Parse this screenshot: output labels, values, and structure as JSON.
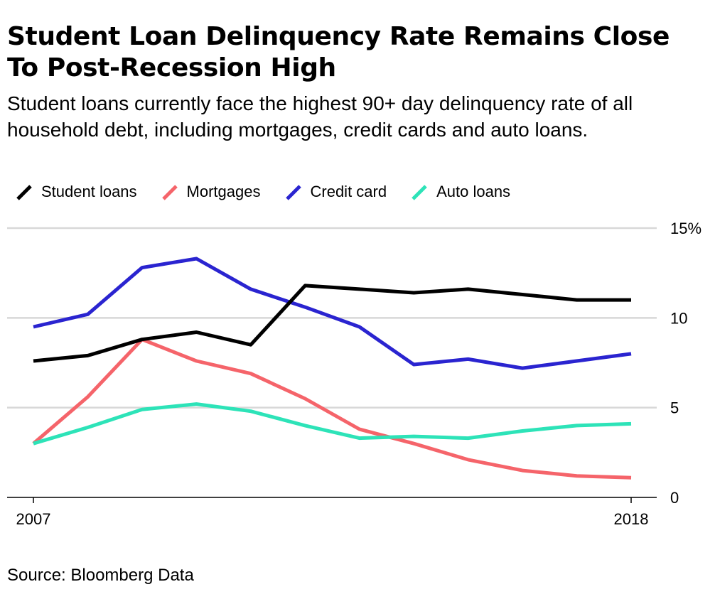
{
  "title": "Student Loan Delinquency Rate Remains Close To Post-Recession High",
  "subtitle": "Student loans currently face the highest 90+ day delinquency rate of all household debt, including mortgages, credit cards and auto loans.",
  "source": "Source: Bloomberg Data",
  "chart_data": {
    "type": "line",
    "title": "Student Loan Delinquency Rate Remains Close To Post-Recession High",
    "x": [
      2007,
      2008,
      2009,
      2010,
      2011,
      2012,
      2013,
      2014,
      2015,
      2016,
      2017,
      2018
    ],
    "x_tick_labels": [
      "2007",
      "2018"
    ],
    "y_tick_labels": [
      "15%",
      "10",
      "5",
      "0"
    ],
    "y_ticks": [
      15,
      10,
      5,
      0
    ],
    "ylim": [
      0,
      15
    ],
    "xlabel": "",
    "ylabel": "",
    "grid": true,
    "y_axis_side": "right",
    "legend_position": "top-left",
    "series": [
      {
        "name": "Student loans",
        "color": "#000000",
        "values": [
          7.6,
          7.9,
          8.8,
          9.2,
          8.5,
          11.8,
          11.6,
          11.4,
          11.6,
          11.3,
          11.0,
          11.0
        ]
      },
      {
        "name": "Mortgages",
        "color": "#f5646a",
        "values": [
          3.0,
          5.6,
          8.8,
          7.6,
          6.9,
          5.5,
          3.8,
          3.0,
          2.1,
          1.5,
          1.2,
          1.1
        ]
      },
      {
        "name": "Credit card",
        "color": "#2a24d0",
        "values": [
          9.5,
          10.2,
          12.8,
          13.3,
          11.6,
          10.6,
          9.5,
          7.4,
          7.7,
          7.2,
          7.6,
          8.0
        ]
      },
      {
        "name": "Auto loans",
        "color": "#2de3b8",
        "values": [
          3.0,
          3.9,
          4.9,
          5.2,
          4.8,
          4.0,
          3.3,
          3.4,
          3.3,
          3.7,
          4.0,
          4.1
        ]
      }
    ]
  }
}
